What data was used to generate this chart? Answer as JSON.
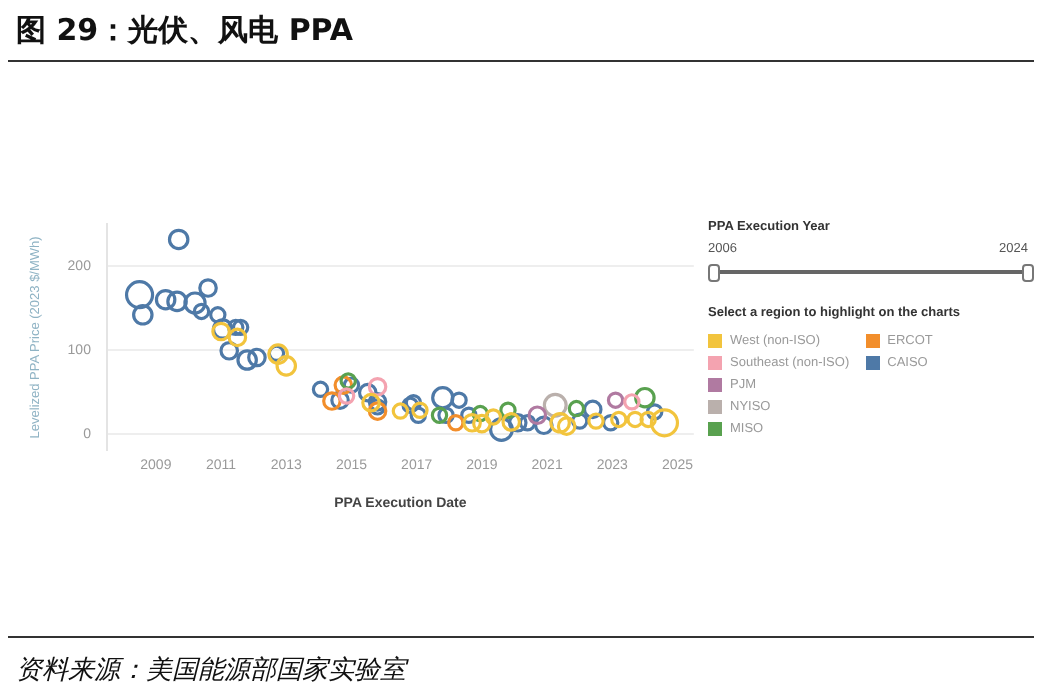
{
  "chart_data": {
    "type": "bubble",
    "title": "图 29：光伏、风电 PPA",
    "xlabel": "PPA Execution Date",
    "ylabel": "Levelized PPA Price (2023 $/MWh)",
    "legend_title": "Select a region to highlight on the charts",
    "annotations": [
      "PPA Execution Year",
      "2006",
      "2024",
      "资料来源：美国能源部国家实验室"
    ],
    "xlim": [
      2007.5,
      2025.5
    ],
    "xticks": [
      2009,
      2011,
      2013,
      2015,
      2017,
      2019,
      2021,
      2023,
      2025
    ],
    "ylim": [
      -20,
      250
    ],
    "yticks": [
      0,
      100,
      200
    ],
    "grid": "y",
    "legend": "right",
    "marker": "circle",
    "series": [
      {
        "name": "West (non-ISO)",
        "color": "#f2c43d",
        "x": [
          2011.0,
          2011.5,
          2012.75,
          2013.0,
          2015.6,
          2016.5,
          2017.1,
          2018.7,
          2019.0,
          2019.35,
          2019.9,
          2021.4,
          2021.6,
          2022.5,
          2023.2,
          2023.7,
          2024.1,
          2024.6
        ],
        "values": [
          122,
          115,
          95,
          81,
          37,
          27,
          28,
          13,
          12,
          20,
          14,
          13,
          9,
          15,
          17,
          17,
          17,
          13
        ],
        "sizes": [
          0.4,
          0.4,
          0.5,
          0.5,
          0.4,
          0.3,
          0.3,
          0.4,
          0.4,
          0.3,
          0.4,
          0.5,
          0.4,
          0.3,
          0.3,
          0.3,
          0.3,
          1
        ]
      },
      {
        "name": "Southeast (non-ISO)",
        "color": "#f4a3b0",
        "x": [
          2014.85,
          2015.8,
          2023.6
        ],
        "values": [
          45,
          56,
          38
        ],
        "sizes": [
          0.3,
          0.4,
          0.3
        ]
      },
      {
        "name": "PJM",
        "color": "#b07aa1",
        "x": [
          2020.7,
          2023.1
        ],
        "values": [
          22,
          40
        ],
        "sizes": [
          0.4,
          0.3
        ]
      },
      {
        "name": "NYISO",
        "color": "#bab0ac",
        "x": [
          2021.25
        ],
        "values": [
          34
        ],
        "sizes": [
          0.7
        ]
      },
      {
        "name": "MISO",
        "color": "#59a14f",
        "x": [
          2014.9,
          2017.7,
          2018.95,
          2019.8,
          2021.9,
          2024.0
        ],
        "values": [
          63,
          22,
          24,
          28,
          30,
          43
        ],
        "sizes": [
          0.3,
          0.3,
          0.3,
          0.3,
          0.3,
          0.5
        ]
      },
      {
        "name": "ERCOT",
        "color": "#f28e2b",
        "x": [
          2014.4,
          2014.75,
          2015.8,
          2018.2
        ],
        "values": [
          39,
          58,
          27,
          13
        ],
        "sizes": [
          0.4,
          0.4,
          0.4,
          0.3
        ]
      },
      {
        "name": "CAISO",
        "color": "#4e79a7",
        "x": [
          2008.5,
          2008.6,
          2009.7,
          2009.3,
          2009.65,
          2010.2,
          2010.4,
          2010.6,
          2010.9,
          2011.05,
          2011.25,
          2011.45,
          2011.6,
          2011.8,
          2012.1,
          2012.7,
          2014.05,
          2014.65,
          2015.0,
          2015.5,
          2015.8,
          2015.8,
          2016.8,
          2016.9,
          2017.05,
          2017.8,
          2018.3,
          2017.9,
          2018.6,
          2019.6,
          2020.1,
          2020.4,
          2020.9,
          2022.0,
          2022.4,
          2022.95,
          2024.3
        ],
        "values": [
          166,
          142,
          232,
          160,
          158,
          156,
          146,
          174,
          142,
          125,
          99,
          127,
          127,
          88,
          91,
          96,
          53,
          40,
          58,
          49,
          38,
          32,
          34,
          37,
          22,
          43,
          40,
          22,
          22,
          5,
          13,
          13,
          10,
          15,
          29,
          13,
          26
        ],
        "sizes": [
          1,
          0.5,
          0.5,
          0.5,
          0.5,
          0.6,
          0.3,
          0.4,
          0.3,
          0.5,
          0.4,
          0.3,
          0.3,
          0.5,
          0.4,
          0.3,
          0.3,
          0.4,
          0.3,
          0.4,
          0.4,
          0.3,
          0.3,
          0.3,
          0.3,
          0.6,
          0.3,
          0.3,
          0.3,
          0.7,
          0.4,
          0.3,
          0.4,
          0.3,
          0.4,
          0.3,
          0.3
        ]
      }
    ]
  }
}
